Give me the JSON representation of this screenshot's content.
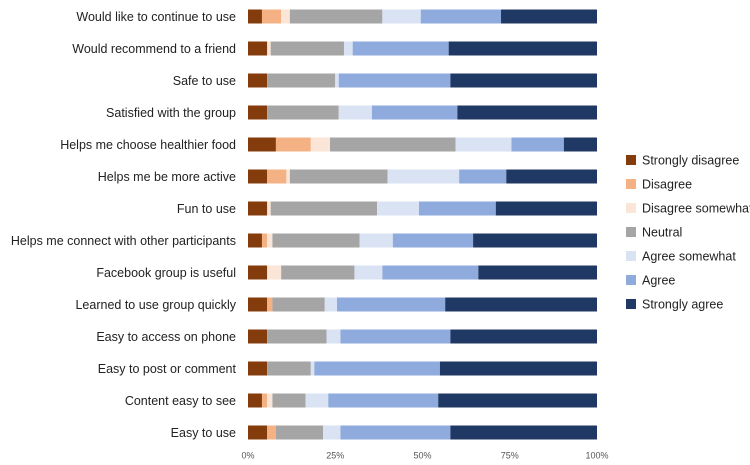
{
  "chart_data": {
    "type": "bar",
    "orientation": "horizontal-stacked-100",
    "categories": [
      "Would like to continue to use",
      "Would recommend to a friend",
      "Safe to use",
      "Satisfied with the group",
      "Helps me choose healthier food",
      "Helps me be more active",
      "Fun to use",
      "Helps me connect with other participants",
      "Facebook group is useful",
      "Learned to use group quickly",
      "Easy to access on phone",
      "Easy to post or comment",
      "Content easy to see",
      "Easy to use"
    ],
    "series": [
      {
        "name": "Strongly disagree",
        "color": "#843c0c",
        "values": [
          4,
          5.5,
          5.5,
          5.5,
          8,
          5.5,
          5.5,
          4,
          5.5,
          5.5,
          5.5,
          5.5,
          4,
          5.5
        ]
      },
      {
        "name": "Disagree",
        "color": "#f4b183",
        "values": [
          5.5,
          0,
          0,
          0,
          10,
          5.5,
          0,
          1.5,
          0,
          1.5,
          0,
          0,
          1.5,
          2.5
        ]
      },
      {
        "name": "Disagree somewhat",
        "color": "#fbe5d6",
        "values": [
          2.5,
          1,
          0,
          0,
          5.5,
          1,
          1,
          1.5,
          4,
          0,
          0,
          0,
          1.5,
          0
        ]
      },
      {
        "name": "Neutral",
        "color": "#a5a5a5",
        "values": [
          26.5,
          21,
          19.5,
          20.5,
          36,
          28,
          30.5,
          25,
          21,
          15,
          17,
          12.5,
          9.5,
          13.5
        ]
      },
      {
        "name": "Agree somewhat",
        "color": "#dae3f3",
        "values": [
          11,
          2.5,
          1,
          9.5,
          16,
          20.5,
          12,
          9.5,
          8,
          3.5,
          4,
          1,
          6.5,
          5
        ]
      },
      {
        "name": "Agree",
        "color": "#8faadc",
        "values": [
          23,
          27.5,
          32,
          24.5,
          15,
          13.5,
          22,
          23,
          27.5,
          31,
          31.5,
          36,
          31.5,
          31.5
        ]
      },
      {
        "name": "Strongly agree",
        "color": "#203864",
        "values": [
          27.5,
          42.5,
          42,
          40,
          9.5,
          26,
          29,
          35.5,
          34,
          43.5,
          42,
          45,
          45.5,
          42
        ]
      }
    ],
    "xlim": [
      0,
      100
    ],
    "xticks": [
      "0%",
      "25%",
      "50%",
      "75%",
      "100%"
    ],
    "title": "",
    "xlabel": "",
    "ylabel": "",
    "grid": false,
    "legend_position": "right"
  }
}
